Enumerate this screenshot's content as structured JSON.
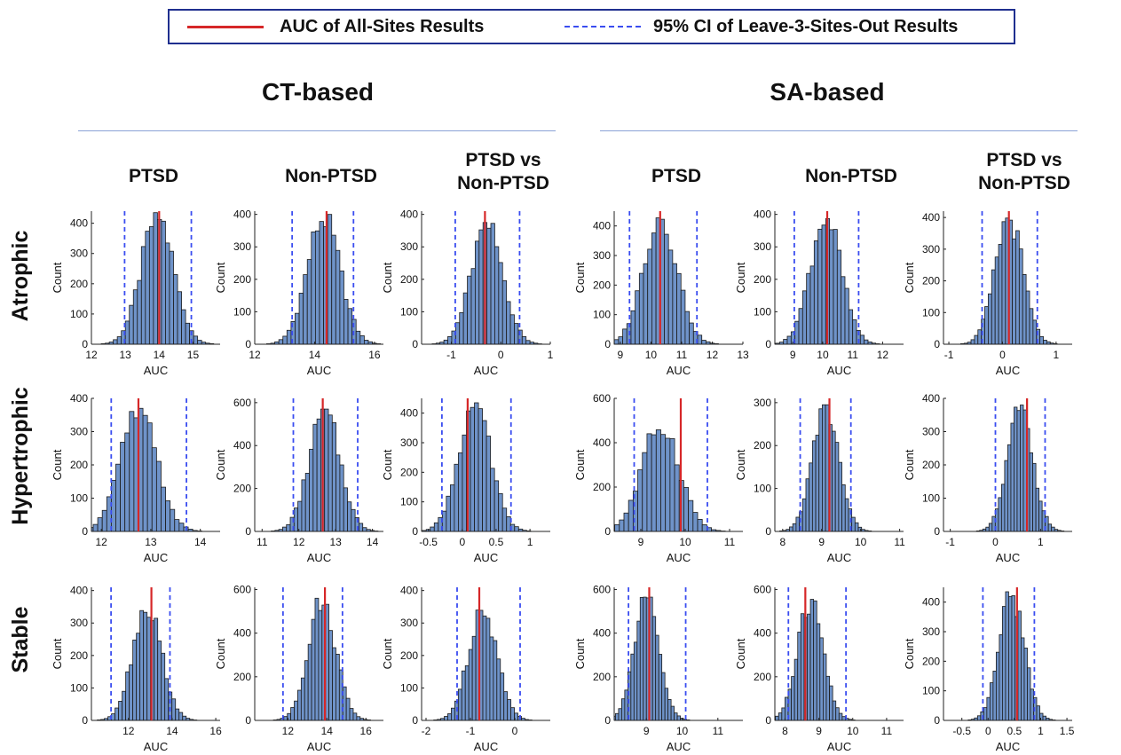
{
  "legend": {
    "auc_label": "AUC of All-Sites Results",
    "ci_label": "95% CI of Leave-3-Sites-Out Results",
    "auc_color": "#d62728",
    "ci_color": "#3a4df0"
  },
  "groups": {
    "ct": "CT-based",
    "sa": "SA-based"
  },
  "columns": {
    "ptsd": "PTSD",
    "nonptsd": "Non-PTSD",
    "vs_line1": "PTSD vs",
    "vs_line2": "Non-PTSD"
  },
  "rows": {
    "atrophic": "Atrophic",
    "hypertrophic": "Hypertrophic",
    "stable": "Stable"
  },
  "colors": {
    "bar_fill": "#6f93c9",
    "bar_stroke": "#1b1b1b",
    "auc_line": "#d62728",
    "ci_line": "#3a4df0"
  },
  "chart_data": [
    {
      "type": "bar",
      "row": "Atrophic",
      "group": "CT-based",
      "column": "PTSD",
      "xlabel": "AUC",
      "ylabel": "Count",
      "xlim": [
        12,
        15.8
      ],
      "xticks": [
        12,
        13,
        14,
        15
      ],
      "ylim": [
        0,
        440
      ],
      "yticks": [
        0,
        100,
        200,
        300,
        400
      ],
      "mean": 13.95,
      "sd": 0.48,
      "peak": 435,
      "auc": 14.0,
      "ci": [
        12.98,
        14.95
      ]
    },
    {
      "type": "bar",
      "row": "Atrophic",
      "group": "CT-based",
      "column": "Non-PTSD",
      "xlabel": "AUC",
      "ylabel": "Count",
      "xlim": [
        12,
        16.3
      ],
      "xticks": [
        12,
        14,
        16
      ],
      "ylim": [
        0,
        410
      ],
      "yticks": [
        0,
        100,
        200,
        300,
        400
      ],
      "mean": 14.3,
      "sd": 0.55,
      "peak": 400,
      "auc": 14.4,
      "ci": [
        13.25,
        15.3
      ]
    },
    {
      "type": "bar",
      "row": "Atrophic",
      "group": "CT-based",
      "column": "PTSD vs Non-PTSD",
      "xlabel": "AUC",
      "ylabel": "Count",
      "xlim": [
        -1.6,
        1.0
      ],
      "xticks": [
        -1,
        0,
        1
      ],
      "ylim": [
        0,
        410
      ],
      "yticks": [
        0,
        100,
        200,
        300,
        400
      ],
      "mean": -0.28,
      "sd": 0.32,
      "peak": 375,
      "auc": -0.32,
      "ci": [
        -0.92,
        0.38
      ]
    },
    {
      "type": "bar",
      "row": "Atrophic",
      "group": "SA-based",
      "column": "PTSD",
      "xlabel": "AUC",
      "ylabel": "Count",
      "xlim": [
        8.8,
        13
      ],
      "xticks": [
        9,
        10,
        11,
        12,
        13
      ],
      "ylim": [
        0,
        450
      ],
      "yticks": [
        0,
        100,
        200,
        300,
        400
      ],
      "mean": 10.3,
      "sd": 0.55,
      "peak": 445,
      "auc": 10.3,
      "ci": [
        9.3,
        11.5
      ]
    },
    {
      "type": "bar",
      "row": "Atrophic",
      "group": "SA-based",
      "column": "Non-PTSD",
      "xlabel": "AUC",
      "ylabel": "Count",
      "xlim": [
        8.4,
        12.7
      ],
      "xticks": [
        9,
        10,
        11,
        12
      ],
      "ylim": [
        0,
        410
      ],
      "yticks": [
        0,
        100,
        200,
        300,
        400
      ],
      "mean": 10.1,
      "sd": 0.52,
      "peak": 405,
      "auc": 10.15,
      "ci": [
        9.05,
        11.2
      ]
    },
    {
      "type": "bar",
      "row": "Atrophic",
      "group": "SA-based",
      "column": "PTSD vs Non-PTSD",
      "xlabel": "AUC",
      "ylabel": "Count",
      "xlim": [
        -1.1,
        1.3
      ],
      "xticks": [
        -1,
        0,
        1
      ],
      "ylim": [
        0,
        420
      ],
      "yticks": [
        0,
        100,
        200,
        300,
        400
      ],
      "mean": 0.12,
      "sd": 0.26,
      "peak": 410,
      "auc": 0.12,
      "ci": [
        -0.38,
        0.65
      ]
    },
    {
      "type": "bar",
      "row": "Hypertrophic",
      "group": "CT-based",
      "column": "PTSD",
      "xlabel": "AUC",
      "ylabel": "Count",
      "xlim": [
        11.8,
        14.4
      ],
      "xticks": [
        12,
        13,
        14
      ],
      "ylim": [
        0,
        400
      ],
      "yticks": [
        0,
        100,
        200,
        300,
        400
      ],
      "mean": 12.75,
      "sd": 0.37,
      "peak": 370,
      "auc": 12.75,
      "ci": [
        12.2,
        13.72
      ]
    },
    {
      "type": "bar",
      "row": "Hypertrophic",
      "group": "CT-based",
      "column": "Non-PTSD",
      "xlabel": "AUC",
      "ylabel": "Count",
      "xlim": [
        10.8,
        14.3
      ],
      "xticks": [
        11,
        12,
        13,
        14
      ],
      "ylim": [
        0,
        620
      ],
      "yticks": [
        0,
        200,
        400,
        600
      ],
      "mean": 12.7,
      "sd": 0.42,
      "peak": 570,
      "auc": 12.65,
      "ci": [
        11.85,
        13.6
      ]
    },
    {
      "type": "bar",
      "row": "Hypertrophic",
      "group": "CT-based",
      "column": "PTSD vs Non-PTSD",
      "xlabel": "AUC",
      "ylabel": "Count",
      "xlim": [
        -0.6,
        1.3
      ],
      "xticks": [
        -0.5,
        0,
        0.5,
        1
      ],
      "ylim": [
        0,
        450
      ],
      "yticks": [
        0,
        100,
        200,
        300,
        400
      ],
      "mean": 0.18,
      "sd": 0.24,
      "peak": 435,
      "auc": 0.08,
      "ci": [
        -0.3,
        0.72
      ]
    },
    {
      "type": "bar",
      "row": "Hypertrophic",
      "group": "SA-based",
      "column": "PTSD",
      "xlabel": "AUC",
      "ylabel": "Count",
      "xlim": [
        8.4,
        11.3
      ],
      "xticks": [
        9,
        10,
        11
      ],
      "ylim": [
        0,
        600
      ],
      "yticks": [
        0,
        200,
        400,
        600
      ],
      "mean": 9.45,
      "sd": 0.42,
      "peak": 495,
      "auc": 9.9,
      "ci": [
        8.85,
        10.5
      ]
    },
    {
      "type": "bar",
      "row": "Hypertrophic",
      "group": "SA-based",
      "column": "Non-PTSD",
      "xlabel": "AUC",
      "ylabel": "Count",
      "xlim": [
        7.8,
        11.1
      ],
      "xticks": [
        8,
        9,
        10,
        11
      ],
      "ylim": [
        0,
        310
      ],
      "yticks": [
        0,
        100,
        200,
        300
      ],
      "mean": 9.1,
      "sd": 0.34,
      "peak": 295,
      "auc": 9.2,
      "ci": [
        8.45,
        9.75
      ]
    },
    {
      "type": "bar",
      "row": "Hypertrophic",
      "group": "SA-based",
      "column": "PTSD vs Non-PTSD",
      "xlabel": "AUC",
      "ylabel": "Count",
      "xlim": [
        -1.15,
        1.7
      ],
      "xticks": [
        -1,
        0,
        1
      ],
      "ylim": [
        0,
        400
      ],
      "yticks": [
        0,
        100,
        200,
        300,
        400
      ],
      "mean": 0.55,
      "sd": 0.28,
      "peak": 380,
      "auc": 0.7,
      "ci": [
        0.0,
        1.1
      ]
    },
    {
      "type": "bar",
      "row": "Stable",
      "group": "CT-based",
      "column": "PTSD",
      "xlabel": "AUC",
      "ylabel": "Count",
      "xlim": [
        10.3,
        16.2
      ],
      "xticks": [
        12,
        14,
        16
      ],
      "ylim": [
        0,
        410
      ],
      "yticks": [
        0,
        100,
        200,
        300,
        400
      ],
      "mean": 12.85,
      "sd": 0.66,
      "peak": 365,
      "auc": 13.05,
      "ci": [
        11.2,
        13.9
      ]
    },
    {
      "type": "bar",
      "row": "Stable",
      "group": "CT-based",
      "column": "Non-PTSD",
      "xlabel": "AUC",
      "ylabel": "Count",
      "xlim": [
        10.3,
        16.9
      ],
      "xticks": [
        12,
        14,
        16
      ],
      "ylim": [
        0,
        610
      ],
      "yticks": [
        0,
        200,
        400,
        600
      ],
      "mean": 13.75,
      "sd": 0.72,
      "peak": 560,
      "auc": 13.9,
      "ci": [
        11.75,
        14.8
      ]
    },
    {
      "type": "bar",
      "row": "Stable",
      "group": "CT-based",
      "column": "PTSD vs Non-PTSD",
      "xlabel": "AUC",
      "ylabel": "Count",
      "xlim": [
        -2.1,
        0.8
      ],
      "xticks": [
        -2,
        -1,
        0
      ],
      "ylim": [
        0,
        410
      ],
      "yticks": [
        0,
        100,
        200,
        300,
        400
      ],
      "mean": -0.72,
      "sd": 0.32,
      "peak": 360,
      "auc": -0.8,
      "ci": [
        -1.3,
        0.12
      ]
    },
    {
      "type": "bar",
      "row": "Stable",
      "group": "SA-based",
      "column": "PTSD",
      "xlabel": "AUC",
      "ylabel": "Count",
      "xlim": [
        8.1,
        11.7
      ],
      "xticks": [
        9,
        10,
        11
      ],
      "ylim": [
        0,
        610
      ],
      "yticks": [
        0,
        200,
        400,
        600
      ],
      "mean": 9.0,
      "sd": 0.35,
      "peak": 565,
      "auc": 9.08,
      "ci": [
        8.5,
        10.1
      ]
    },
    {
      "type": "bar",
      "row": "Stable",
      "group": "SA-based",
      "column": "Non-PTSD",
      "xlabel": "AUC",
      "ylabel": "Count",
      "xlim": [
        7.7,
        11.5
      ],
      "xticks": [
        8,
        9,
        10,
        11
      ],
      "ylim": [
        0,
        610
      ],
      "yticks": [
        0,
        200,
        400,
        600
      ],
      "mean": 8.75,
      "sd": 0.38,
      "peak": 555,
      "auc": 8.6,
      "ci": [
        8.1,
        9.8
      ]
    },
    {
      "type": "bar",
      "row": "Stable",
      "group": "SA-based",
      "column": "PTSD vs Non-PTSD",
      "xlabel": "AUC",
      "ylabel": "Count",
      "xlim": [
        -0.85,
        1.6
      ],
      "xticks": [
        -0.5,
        0,
        0.5,
        1,
        1.5
      ],
      "ylim": [
        0,
        450
      ],
      "yticks": [
        0,
        100,
        200,
        300,
        400
      ],
      "mean": 0.45,
      "sd": 0.24,
      "peak": 435,
      "auc": 0.55,
      "ci": [
        -0.1,
        0.88
      ]
    }
  ]
}
